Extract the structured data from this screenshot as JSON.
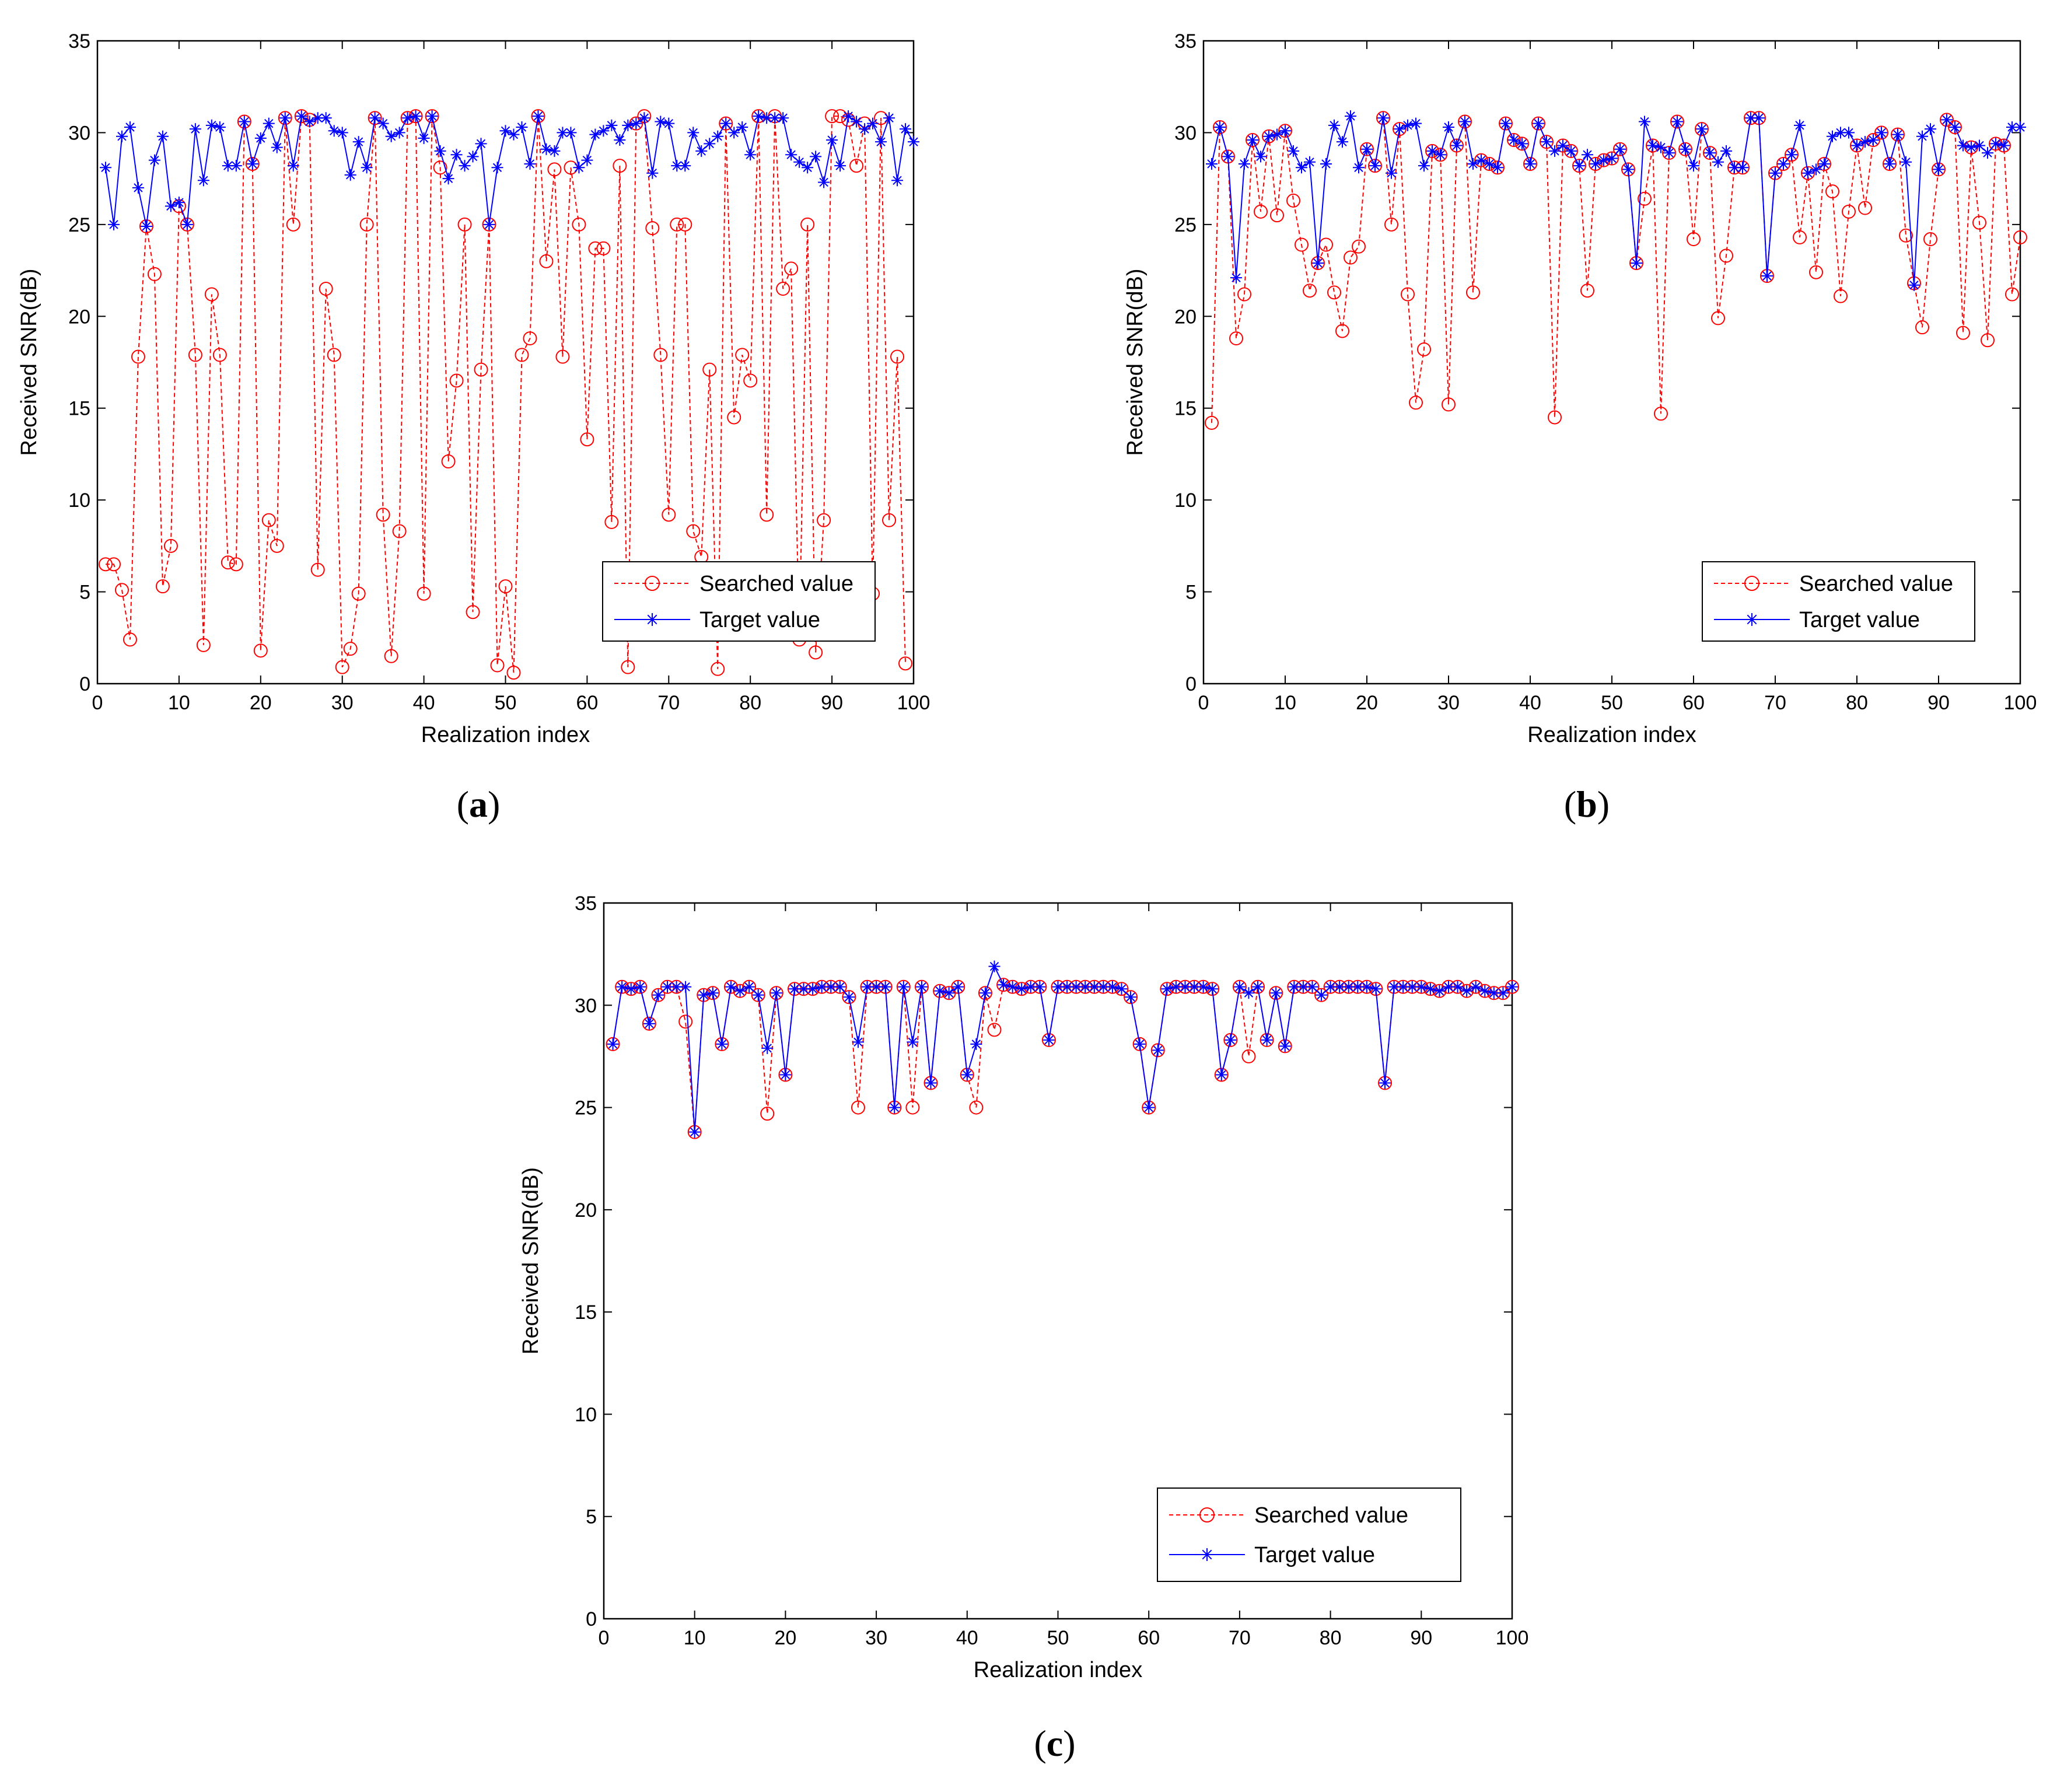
{
  "chart_data": [
    {
      "type": "line",
      "panel": "a",
      "caption_letter": "a",
      "caption_open": "(",
      "caption_close": ")",
      "xlabel": "Realization index",
      "ylabel": "Received SNR(dB)",
      "xlim": [
        0,
        100
      ],
      "ylim": [
        0,
        35
      ],
      "xticks": [
        0,
        10,
        20,
        30,
        40,
        50,
        60,
        70,
        80,
        90,
        100
      ],
      "yticks": [
        0,
        5,
        10,
        15,
        20,
        25,
        30,
        35
      ],
      "legend_position": "bottom-right",
      "series": [
        {
          "name": "Searched value",
          "color": "#ff0000",
          "marker": "circle",
          "line": "dashed",
          "values": [
            6.5,
            6.5,
            5.1,
            2.4,
            17.8,
            24.9,
            22.3,
            5.3,
            7.5,
            26.0,
            25.0,
            17.9,
            2.1,
            21.2,
            17.9,
            6.6,
            6.5,
            30.6,
            28.3,
            1.8,
            8.9,
            7.5,
            30.8,
            25.0,
            30.9,
            30.7,
            6.2,
            21.5,
            17.9,
            0.9,
            1.9,
            4.9,
            25.0,
            30.8,
            9.2,
            1.5,
            8.3,
            30.8,
            30.9,
            4.9,
            30.9,
            28.1,
            12.1,
            16.5,
            25.0,
            3.9,
            17.1,
            25.0,
            1.0,
            5.3,
            0.6,
            17.9,
            18.8,
            30.9,
            23.0,
            28.0,
            17.8,
            28.1,
            25.0,
            13.3,
            23.7,
            23.7,
            8.8,
            28.2,
            0.9,
            30.5,
            30.9,
            24.8,
            17.9,
            9.2,
            25.0,
            25.0,
            8.3,
            6.9,
            17.1,
            0.8,
            30.5,
            14.5,
            17.9,
            16.5,
            30.9,
            9.2,
            30.9,
            21.5,
            22.6,
            2.4,
            25.0,
            1.7,
            8.9,
            30.9,
            30.9,
            30.7,
            28.2,
            30.5,
            4.9,
            30.8,
            8.9,
            17.8,
            1.1
          ]
        },
        {
          "name": "Target value",
          "color": "#0000ff",
          "marker": "asterisk",
          "line": "solid",
          "values": [
            28.1,
            25.0,
            29.8,
            30.3,
            27.0,
            24.9,
            28.5,
            29.8,
            26.0,
            26.2,
            25.0,
            30.2,
            27.4,
            30.4,
            30.3,
            28.2,
            28.2,
            30.6,
            28.3,
            29.7,
            30.5,
            29.2,
            30.8,
            28.2,
            30.9,
            30.6,
            30.8,
            30.8,
            30.1,
            30.0,
            27.7,
            29.5,
            28.1,
            30.8,
            30.5,
            29.8,
            30.0,
            30.8,
            30.9,
            29.7,
            30.9,
            29.0,
            27.5,
            28.8,
            28.2,
            28.7,
            29.4,
            25.0,
            28.1,
            30.1,
            29.9,
            30.3,
            28.3,
            30.9,
            29.1,
            29.0,
            30.0,
            30.0,
            28.1,
            28.5,
            29.9,
            30.1,
            30.4,
            29.6,
            30.4,
            30.5,
            30.8,
            27.8,
            30.6,
            30.5,
            28.2,
            28.2,
            30.0,
            29.0,
            29.4,
            29.8,
            30.5,
            30.0,
            30.3,
            28.8,
            30.9,
            30.8,
            30.8,
            30.8,
            28.8,
            28.4,
            28.1,
            28.7,
            27.3,
            29.6,
            28.2,
            30.9,
            30.6,
            30.2,
            30.5,
            29.5,
            30.8,
            27.4,
            30.2,
            29.5
          ]
        }
      ]
    },
    {
      "type": "line",
      "panel": "b",
      "caption_letter": "b",
      "caption_open": "(",
      "caption_close": ")",
      "xlabel": "Realization index",
      "ylabel": "Received SNR(dB)",
      "xlim": [
        0,
        100
      ],
      "ylim": [
        0,
        35
      ],
      "xticks": [
        0,
        10,
        20,
        30,
        40,
        50,
        60,
        70,
        80,
        90,
        100
      ],
      "yticks": [
        0,
        5,
        10,
        15,
        20,
        25,
        30,
        35
      ],
      "legend_position": "bottom-right",
      "series": [
        {
          "name": "Searched value",
          "color": "#ff0000",
          "marker": "circle",
          "line": "dashed",
          "values": [
            14.2,
            30.3,
            28.7,
            18.8,
            21.2,
            29.6,
            25.7,
            29.8,
            25.5,
            30.1,
            26.3,
            23.9,
            21.4,
            22.9,
            23.9,
            21.3,
            19.2,
            23.2,
            23.8,
            29.1,
            28.2,
            30.8,
            25.0,
            30.2,
            21.2,
            15.3,
            18.2,
            29.0,
            28.8,
            15.2,
            29.3,
            30.6,
            21.3,
            28.5,
            28.3,
            28.1,
            30.5,
            29.6,
            29.4,
            28.3,
            30.5,
            29.5,
            14.5,
            29.3,
            29.0,
            28.2,
            21.4,
            28.3,
            28.5,
            28.6,
            29.1,
            28.0,
            22.9,
            26.4,
            29.3,
            14.7,
            28.9,
            30.6,
            29.1,
            24.2,
            30.2,
            28.9,
            19.9,
            23.3,
            28.1,
            28.1,
            30.8,
            30.8,
            22.2,
            27.8,
            28.3,
            28.8,
            24.3,
            27.8,
            22.4,
            28.3,
            26.8,
            21.1,
            25.7,
            29.3,
            25.9,
            29.6,
            30.0,
            28.3,
            29.9,
            24.4,
            21.8,
            19.4,
            24.2,
            28.0,
            30.7,
            30.3,
            19.1,
            29.2,
            25.1,
            18.7,
            29.4,
            29.3,
            21.2,
            24.3
          ]
        },
        {
          "name": "Target value",
          "color": "#0000ff",
          "marker": "asterisk",
          "line": "solid",
          "values": [
            28.3,
            30.3,
            28.7,
            22.1,
            28.3,
            29.6,
            28.7,
            29.8,
            29.9,
            30.1,
            29.0,
            28.1,
            28.4,
            22.9,
            28.3,
            30.4,
            29.5,
            30.9,
            28.1,
            29.1,
            28.2,
            30.8,
            27.8,
            30.2,
            30.4,
            30.5,
            28.2,
            29.0,
            28.8,
            30.3,
            29.3,
            30.6,
            28.3,
            28.5,
            28.3,
            28.1,
            30.5,
            29.6,
            29.4,
            28.3,
            30.5,
            29.5,
            29.0,
            29.3,
            29.0,
            28.2,
            28.8,
            28.3,
            28.5,
            28.6,
            29.1,
            28.0,
            22.9,
            30.6,
            29.3,
            29.2,
            28.9,
            30.6,
            29.1,
            28.2,
            30.2,
            28.9,
            28.4,
            29.0,
            28.1,
            28.1,
            30.8,
            30.8,
            22.2,
            27.8,
            28.3,
            28.8,
            30.4,
            27.8,
            28.0,
            28.3,
            29.8,
            30.0,
            30.0,
            29.3,
            29.5,
            29.6,
            30.0,
            28.3,
            29.9,
            28.4,
            21.7,
            29.8,
            30.2,
            28.0,
            30.7,
            30.3,
            29.3,
            29.2,
            29.3,
            28.9,
            29.4,
            29.3,
            30.3,
            30.3
          ]
        }
      ]
    },
    {
      "type": "line",
      "panel": "c",
      "caption_letter": "c",
      "caption_open": "(",
      "caption_close": ")",
      "xlabel": "Realization index",
      "ylabel": "Received SNR(dB)",
      "xlim": [
        0,
        100
      ],
      "ylim": [
        0,
        35
      ],
      "xticks": [
        0,
        10,
        20,
        30,
        40,
        50,
        60,
        70,
        80,
        90,
        100
      ],
      "yticks": [
        0,
        5,
        10,
        15,
        20,
        25,
        30,
        35
      ],
      "legend_position": "bottom-right",
      "series": [
        {
          "name": "Searched value",
          "color": "#ff0000",
          "marker": "circle",
          "line": "dashed",
          "values": [
            28.1,
            30.9,
            30.8,
            30.9,
            29.1,
            30.5,
            30.9,
            30.9,
            29.2,
            23.8,
            30.5,
            30.6,
            28.1,
            30.9,
            30.7,
            30.9,
            30.5,
            24.7,
            30.6,
            26.6,
            30.8,
            30.8,
            30.8,
            30.9,
            30.9,
            30.9,
            30.4,
            25.0,
            30.9,
            30.9,
            30.9,
            25.0,
            30.9,
            25.0,
            30.9,
            26.2,
            30.7,
            30.6,
            30.9,
            26.6,
            25.0,
            30.6,
            28.8,
            31.0,
            30.9,
            30.8,
            30.9,
            30.9,
            28.3,
            30.9,
            30.9,
            30.9,
            30.9,
            30.9,
            30.9,
            30.9,
            30.8,
            30.4,
            28.1,
            25.0,
            27.8,
            30.8,
            30.9,
            30.9,
            30.9,
            30.9,
            30.8,
            26.6,
            28.3,
            30.9,
            27.5,
            30.9,
            28.3,
            30.6,
            28.0,
            30.9,
            30.9,
            30.9,
            30.5,
            30.9,
            30.9,
            30.9,
            30.9,
            30.9,
            30.8,
            26.2,
            30.9,
            30.9,
            30.9,
            30.9,
            30.8,
            30.7,
            30.9,
            30.9,
            30.7,
            30.9,
            30.7,
            30.6,
            30.6,
            30.9
          ]
        },
        {
          "name": "Target value",
          "color": "#0000ff",
          "marker": "asterisk",
          "line": "solid",
          "values": [
            28.1,
            30.9,
            30.8,
            30.9,
            29.1,
            30.5,
            30.9,
            30.9,
            30.9,
            23.8,
            30.5,
            30.6,
            28.1,
            30.9,
            30.7,
            30.9,
            30.5,
            27.9,
            30.6,
            26.6,
            30.8,
            30.8,
            30.8,
            30.9,
            30.9,
            30.9,
            30.4,
            28.2,
            30.9,
            30.9,
            30.9,
            25.0,
            30.9,
            28.2,
            30.9,
            26.2,
            30.7,
            30.6,
            30.9,
            26.6,
            28.1,
            30.6,
            31.9,
            31.0,
            30.9,
            30.8,
            30.9,
            30.9,
            28.3,
            30.9,
            30.9,
            30.9,
            30.9,
            30.9,
            30.9,
            30.9,
            30.8,
            30.4,
            28.1,
            25.0,
            27.8,
            30.8,
            30.9,
            30.9,
            30.9,
            30.9,
            30.8,
            26.6,
            28.3,
            30.9,
            30.6,
            30.9,
            28.3,
            30.6,
            28.0,
            30.9,
            30.9,
            30.9,
            30.5,
            30.9,
            30.9,
            30.9,
            30.9,
            30.9,
            30.8,
            26.2,
            30.9,
            30.9,
            30.9,
            30.9,
            30.8,
            30.7,
            30.9,
            30.9,
            30.7,
            30.9,
            30.7,
            30.6,
            30.6,
            30.9
          ]
        }
      ]
    }
  ]
}
